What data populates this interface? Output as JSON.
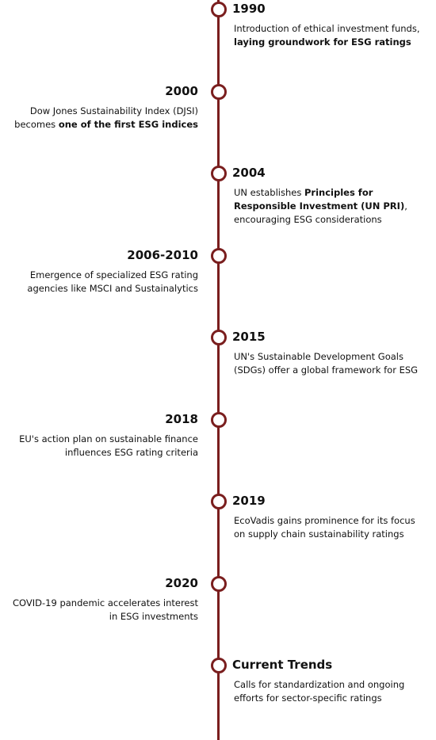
{
  "events": [
    {
      "year": "1990",
      "side": "right",
      "description": [
        {
          "text": "Introduction of ethical investment funds, ",
          "bold": false
        },
        {
          "text": "laying groundwork for ESG ratings",
          "bold": true
        }
      ]
    },
    {
      "year": "2000",
      "side": "left",
      "description": [
        {
          "text": "Dow Jones Sustainability Index (DJSI) becomes ",
          "bold": false
        },
        {
          "text": "one of the first ESG indices",
          "bold": true
        }
      ]
    },
    {
      "year": "2004",
      "side": "right",
      "description": [
        {
          "text": "UN establishes ",
          "bold": false
        },
        {
          "text": "Principles for Responsible Investment (UN PRI)",
          "bold": true
        },
        {
          "text": ", encouraging ESG considerations",
          "bold": false
        }
      ]
    },
    {
      "year": "2006-2010",
      "side": "left",
      "description": [
        {
          "text": "Emergence of specialized ESG rating agencies like MSCI and Sustainalytics",
          "bold": false
        }
      ]
    },
    {
      "year": "2015",
      "side": "right",
      "description": [
        {
          "text": "UN's Sustainable Development Goals (SDGs) offer a global framework for ESG",
          "bold": false
        }
      ]
    },
    {
      "year": "2018",
      "side": "left",
      "description": [
        {
          "text": "EU's action plan on sustainable finance influences ESG rating criteria",
          "bold": false
        }
      ]
    },
    {
      "year": "2019",
      "side": "right",
      "description": [
        {
          "text": "EcoVadis gains prominence for its focus on supply chain sustainability ratings",
          "bold": false
        }
      ]
    },
    {
      "year": "2020",
      "side": "left",
      "description": [
        {
          "text": "COVID-19 pandemic accelerates interest in ESG investments",
          "bold": false
        }
      ]
    },
    {
      "year": "Current Trends",
      "side": "right",
      "description": [
        {
          "text": "Calls for standardization and ongoing efforts for sector-specific ratings",
          "bold": false
        }
      ]
    }
  ]
}
